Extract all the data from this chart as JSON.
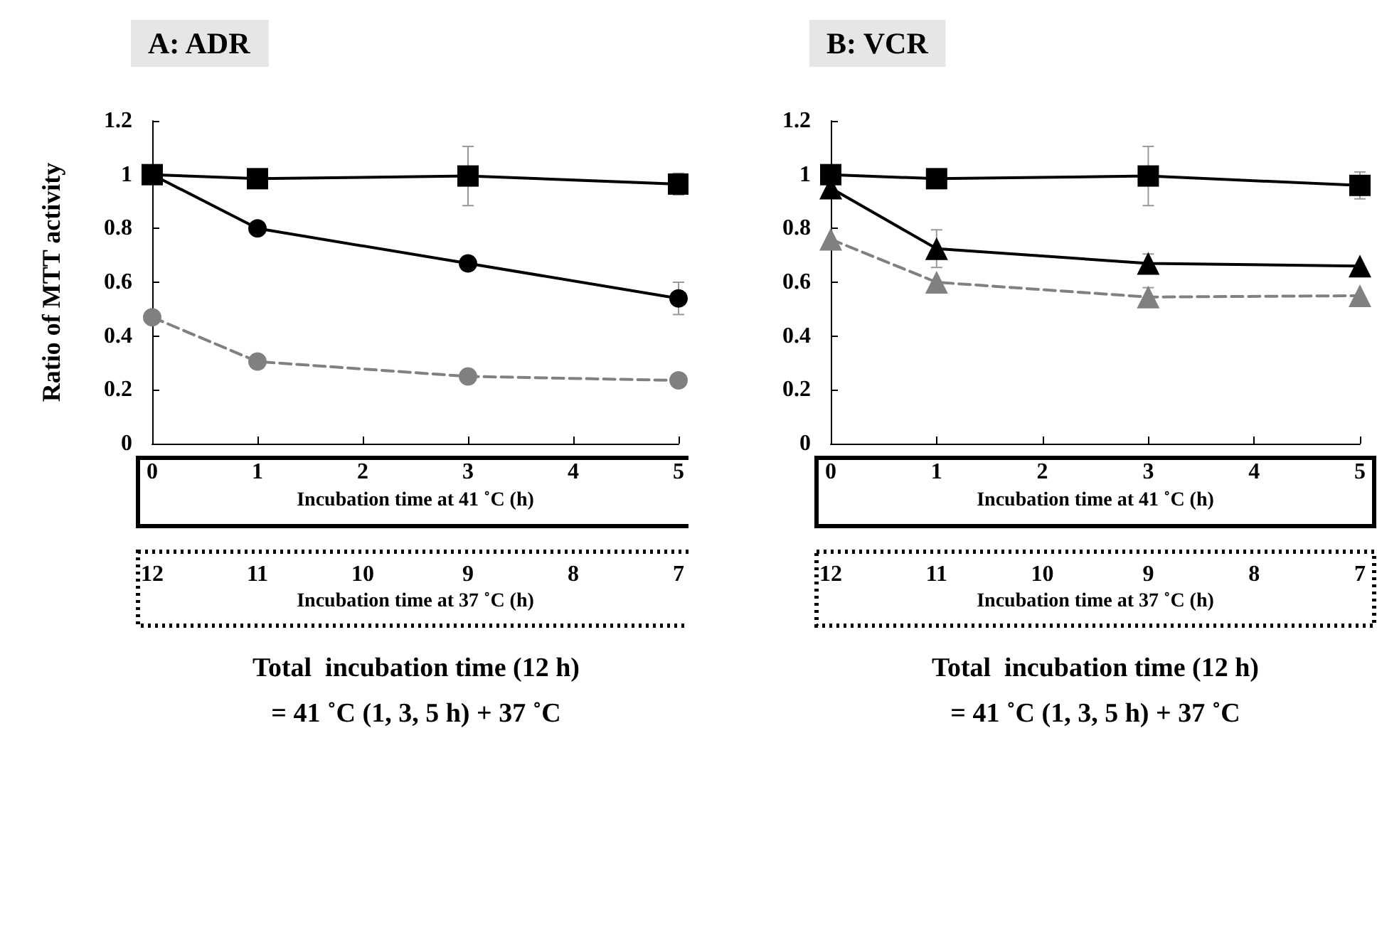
{
  "chart_data": [
    {
      "type": "line",
      "title": "A: ADR",
      "ylabel": "Ratio of MTT activity",
      "xlabel": "Incubation time at 41 ˚C (h)",
      "x2label": "Incubation time at 37 ˚C (h)",
      "x": [
        0,
        1,
        3,
        5
      ],
      "xlim": [
        0,
        5
      ],
      "xticks": [
        0,
        1,
        2,
        3,
        4,
        5
      ],
      "x2lim": [
        12,
        7
      ],
      "x2ticks": [
        12,
        11,
        10,
        9,
        8,
        7
      ],
      "ylim": [
        0,
        1.2
      ],
      "yticks": [
        0,
        0.2,
        0.4,
        0.6,
        0.8,
        1,
        1.2
      ],
      "grid": false,
      "annotations": [
        "Total  incubation time (12 h)",
        "= 41 ˚C (1, 3, 5 h) + 37 ˚C"
      ],
      "series": [
        {
          "color": "#000000",
          "marker": "square",
          "line_style": "solid",
          "values": [
            1.0,
            0.985,
            0.995,
            0.965
          ],
          "errors": [
            null,
            null,
            0.11,
            0.04
          ]
        },
        {
          "color": "#000000",
          "marker": "circle",
          "line_style": "solid",
          "values": [
            1.0,
            0.8,
            0.67,
            0.54
          ],
          "errors": [
            null,
            null,
            null,
            0.06
          ]
        },
        {
          "color": "#808080",
          "marker": "circle",
          "line_style": "dashed",
          "values": [
            0.47,
            0.305,
            0.25,
            0.235
          ],
          "errors": [
            null,
            null,
            null,
            null
          ]
        }
      ]
    },
    {
      "type": "line",
      "title": "B: VCR",
      "xlabel": "Incubation time at 41 ˚C (h)",
      "x2label": "Incubation time at 37 ˚C (h)",
      "x": [
        0,
        1,
        3,
        5
      ],
      "xlim": [
        0,
        5
      ],
      "xticks": [
        0,
        1,
        2,
        3,
        4,
        5
      ],
      "x2lim": [
        12,
        7
      ],
      "x2ticks": [
        12,
        11,
        10,
        9,
        8,
        7
      ],
      "ylim": [
        0,
        1.2
      ],
      "yticks": [
        0,
        0.2,
        0.4,
        0.6,
        0.8,
        1,
        1.2
      ],
      "grid": false,
      "annotations": [
        "Total  incubation time (12 h)",
        "= 41 ˚C (1, 3, 5 h) + 37 ˚C"
      ],
      "series": [
        {
          "color": "#000000",
          "marker": "square",
          "line_style": "solid",
          "values": [
            1.0,
            0.985,
            0.995,
            0.96
          ],
          "errors": [
            null,
            null,
            0.11,
            0.05
          ]
        },
        {
          "color": "#000000",
          "marker": "triangle",
          "line_style": "solid",
          "values": [
            0.95,
            0.725,
            0.67,
            0.66
          ],
          "errors": [
            null,
            0.07,
            0.035,
            null
          ]
        },
        {
          "color": "#808080",
          "marker": "triangle",
          "line_style": "dashed",
          "values": [
            0.76,
            0.6,
            0.545,
            0.55
          ],
          "errors": [
            null,
            null,
            0.035,
            null
          ]
        }
      ]
    }
  ]
}
